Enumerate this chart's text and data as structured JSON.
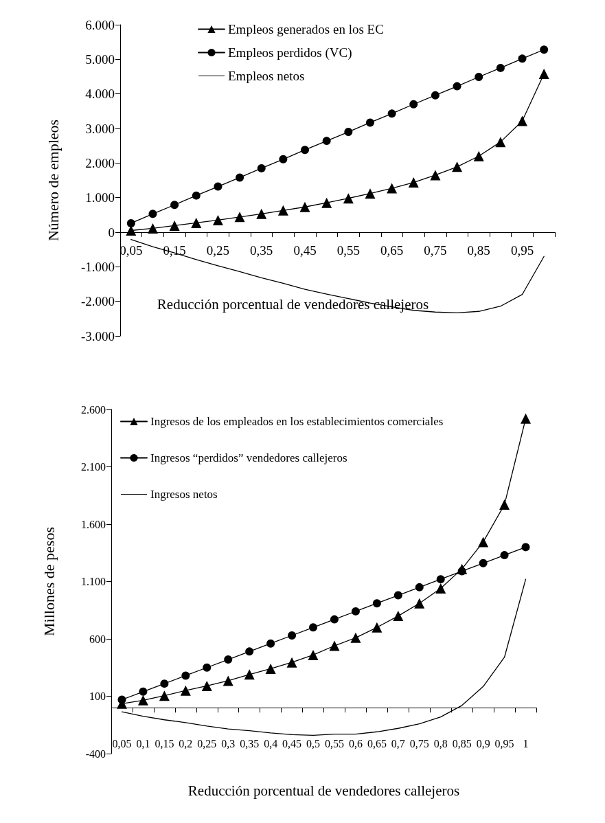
{
  "chart_data": [
    {
      "type": "line",
      "xlabel": "Reducción porcentual de vendedores callejeros",
      "ylabel": "Número de empleos",
      "categories": [
        "0,05",
        null,
        "0,15",
        null,
        "0,25",
        null,
        "0,35",
        null,
        "0,45",
        null,
        "0,55",
        null,
        "0,65",
        null,
        "0,75",
        null,
        "0,85",
        null,
        "0,95",
        null
      ],
      "series": [
        {
          "name": "Empleos generados en los EC",
          "color": "#000000",
          "marker": "triangle",
          "values": [
            50,
            110,
            190,
            270,
            350,
            440,
            530,
            630,
            730,
            850,
            980,
            1120,
            1270,
            1440,
            1650,
            1890,
            2200,
            2610,
            3220,
            4580
          ]
        },
        {
          "name": "Empleos perdidos (VC)",
          "color": "#000000",
          "marker": "circle",
          "values": [
            260,
            530,
            790,
            1060,
            1320,
            1580,
            1850,
            2110,
            2380,
            2640,
            2900,
            3170,
            3430,
            3700,
            3960,
            4220,
            4490,
            4750,
            5020,
            5280
          ]
        },
        {
          "name": "Empleos netos",
          "color": "#000000",
          "marker": "none",
          "values": [
            -210,
            -420,
            -600,
            -790,
            -970,
            -1140,
            -1320,
            -1480,
            -1650,
            -1790,
            -1920,
            -2050,
            -2160,
            -2260,
            -2310,
            -2330,
            -2290,
            -2140,
            -1800,
            -700
          ]
        }
      ],
      "ylim": [
        -3000,
        6000
      ],
      "yticks": [
        {
          "value": -3000,
          "label": "-3.000"
        },
        {
          "value": -2000,
          "label": "-2.000"
        },
        {
          "value": -1000,
          "label": "-1.000"
        },
        0,
        {
          "value": 1000,
          "label": "1.000"
        },
        {
          "value": 2000,
          "label": "2.000"
        },
        {
          "value": 3000,
          "label": "3.000"
        },
        {
          "value": 4000,
          "label": "4.000"
        },
        {
          "value": 5000,
          "label": "5.000"
        },
        {
          "value": 6000,
          "label": "6.000"
        }
      ],
      "legend": "top",
      "line_style": "solid"
    },
    {
      "type": "line",
      "xlabel": "Reducción porcentual de vendedores callejeros",
      "ylabel": "Millones de pesos",
      "categories": [
        "0,05",
        "0,1",
        "0,15",
        "0,2",
        "0,25",
        "0,3",
        "0,35",
        "0,4",
        "0,45",
        "0,5",
        "0,55",
        "0,6",
        "0,65",
        "0,7",
        "0,75",
        "0,8",
        "0,85",
        "0,9",
        "0,95",
        "1"
      ],
      "series": [
        {
          "name": "Ingresos de los empleados en los establecimientos comerciales",
          "color": "#000000",
          "marker": "triangle",
          "values": [
            35,
            65,
            105,
            150,
            190,
            235,
            290,
            340,
            395,
            460,
            540,
            610,
            700,
            800,
            910,
            1040,
            1210,
            1445,
            1770,
            2520
          ]
        },
        {
          "name": "Ingresos “perdidos” vendedores callejeros",
          "color": "#000000",
          "marker": "circle",
          "values": [
            70,
            140,
            210,
            280,
            350,
            420,
            490,
            560,
            630,
            700,
            770,
            840,
            910,
            980,
            1050,
            1120,
            1190,
            1260,
            1330,
            1400
          ]
        },
        {
          "name": "Ingresos netos",
          "color": "#000000",
          "marker": "none",
          "values": [
            -35,
            -75,
            -105,
            -130,
            -160,
            -185,
            -200,
            -220,
            -235,
            -240,
            -230,
            -230,
            -210,
            -180,
            -140,
            -80,
            20,
            185,
            440,
            1120
          ]
        }
      ],
      "ylim": [
        -400,
        2600
      ],
      "yticks": [
        -400,
        100,
        600,
        {
          "value": 1100,
          "label": "1.100"
        },
        {
          "value": 1600,
          "label": "1.600"
        },
        {
          "value": 2100,
          "label": "2.100"
        },
        {
          "value": 2600,
          "label": "2.600"
        }
      ],
      "legend": "top left",
      "line_style": "solid"
    }
  ]
}
